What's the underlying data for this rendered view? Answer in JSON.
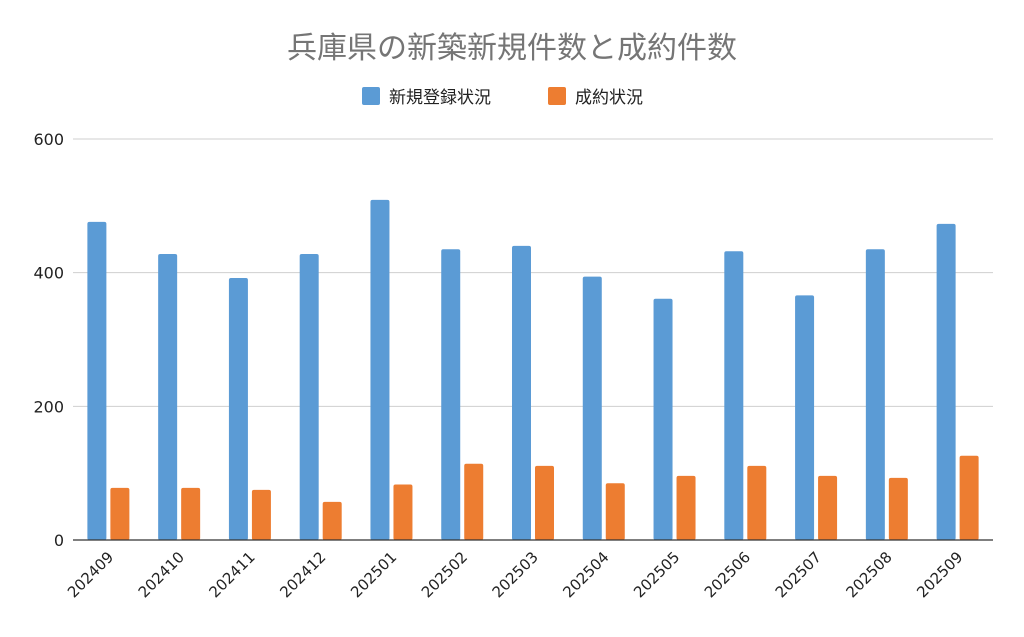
{
  "chart_data": {
    "type": "bar",
    "title": "兵庫県の新築新規件数と成約件数",
    "xlabel": "",
    "ylabel": "",
    "categories": [
      "202409",
      "202410",
      "202411",
      "202412",
      "202501",
      "202502",
      "202503",
      "202504",
      "202505",
      "202506",
      "202507",
      "202508",
      "202509"
    ],
    "series": [
      {
        "name": "新規登録状況",
        "color": "#5B9BD5",
        "values": [
          476,
          428,
          392,
          428,
          509,
          435,
          440,
          394,
          361,
          432,
          366,
          435,
          473
        ]
      },
      {
        "name": "成約状況",
        "color": "#ED7D31",
        "values": [
          78,
          78,
          75,
          57,
          83,
          114,
          111,
          85,
          96,
          111,
          96,
          93,
          126
        ]
      }
    ],
    "ylim": [
      0,
      600
    ],
    "yticks": [
      "0",
      "200",
      "400",
      "600"
    ],
    "grid": true,
    "legend_position": "top"
  }
}
